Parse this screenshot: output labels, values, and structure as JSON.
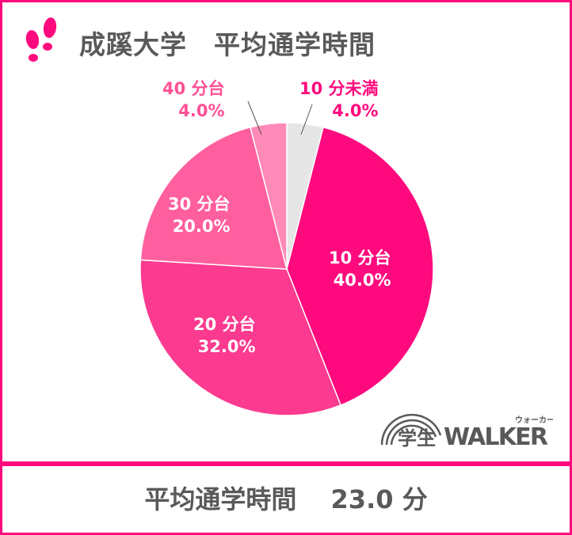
{
  "header": {
    "title": "成蹊大学　平均通学時間",
    "icon": "footprints-icon"
  },
  "summary": {
    "label": "平均通学時間",
    "value": "23.0 分"
  },
  "logo": {
    "text": "学生WALKER",
    "ruby": "ウォーカー"
  },
  "colors": {
    "frame": "#ff0a7e",
    "text": "#595959"
  },
  "chart_data": {
    "type": "pie",
    "start": "12 o'clock, clockwise",
    "slices": [
      {
        "name": "10 分未満",
        "value": 4.0,
        "label": "4.0%",
        "color": "#e6e6e6",
        "label_color": "#ff0a7e"
      },
      {
        "name": "10 分台",
        "value": 40.0,
        "label": "40.0%",
        "color": "#ff0a7e",
        "label_color": "#ffffff"
      },
      {
        "name": "20 分台",
        "value": 32.0,
        "label": "32.0%",
        "color": "#fc3a8f",
        "label_color": "#ffffff"
      },
      {
        "name": "30 分台",
        "value": 20.0,
        "label": "20.0%",
        "color": "#ff5f9e",
        "label_color": "#ffffff"
      },
      {
        "name": "40 分台",
        "value": 4.0,
        "label": "4.0%",
        "color": "#ff8ab8",
        "label_color": "#ff4f95"
      }
    ]
  }
}
